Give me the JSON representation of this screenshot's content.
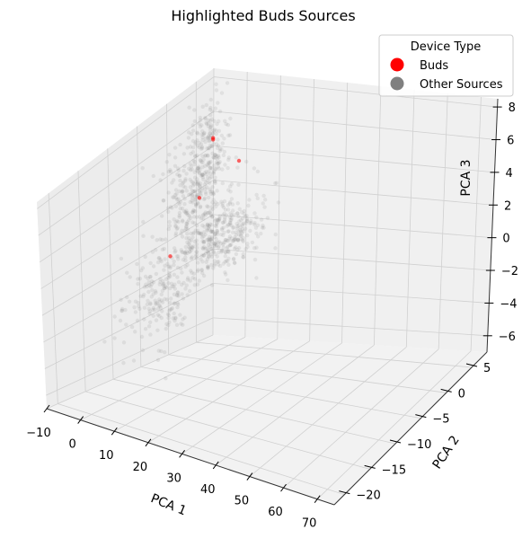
{
  "chart_data": {
    "type": "scatter",
    "title": "Highlighted Buds Sources",
    "projection": "3d",
    "xlabel": "PCA 1",
    "ylabel": "PCA 2",
    "zlabel": "PCA 3",
    "xlim": [
      -10,
      75
    ],
    "ylim": [
      -22,
      8
    ],
    "zlim": [
      -7,
      8.5
    ],
    "x_ticks": [
      "−10",
      "0",
      "10",
      "20",
      "30",
      "40",
      "50",
      "60",
      "70"
    ],
    "y_ticks": [
      "−20",
      "−15",
      "−10",
      "−5",
      "0",
      "5"
    ],
    "z_ticks": [
      "−6",
      "−4",
      "−2",
      "0",
      "2",
      "4",
      "6",
      "8"
    ],
    "grid": true,
    "legend": {
      "title": "Device Type",
      "placement": "top-right",
      "entries": [
        {
          "label": "Buds",
          "color": "#ff0000"
        },
        {
          "label": "Other Sources",
          "color": "#808080"
        }
      ]
    },
    "series": [
      {
        "name": "Buds",
        "color": "#ff0000",
        "points": [
          {
            "x": 2,
            "y": 1,
            "z": 6.5
          },
          {
            "x": 2,
            "y": 1,
            "z": 6.4
          },
          {
            "x": 8,
            "y": 2,
            "z": 5.0
          },
          {
            "x": 3,
            "y": -2,
            "z": 3.6
          },
          {
            "x": 1,
            "y": -6,
            "z": 0.8
          }
        ]
      },
      {
        "name": "Other Sources",
        "color": "#808080",
        "note_clusters": [
          {
            "cx": 2,
            "cy": 0,
            "cz": 6.5,
            "sx": 2,
            "sy": 1.5,
            "sz": 1.2,
            "n": 160
          },
          {
            "cx": 0,
            "cy": -1,
            "cz": 3.8,
            "sx": 3,
            "sy": 2,
            "sz": 1.2,
            "n": 200
          },
          {
            "cx": 6,
            "cy": -1,
            "cz": 0.8,
            "sx": 5,
            "sy": 2.5,
            "sz": 0.9,
            "n": 300
          },
          {
            "cx": 0,
            "cy": -7,
            "cz": -1.5,
            "sx": 3,
            "sy": 3,
            "sz": 1.5,
            "n": 220
          },
          {
            "cx": 10,
            "cy": -2,
            "cz": 2.5,
            "sx": 6,
            "sy": 2,
            "sz": 1.8,
            "n": 120
          }
        ]
      }
    ]
  }
}
